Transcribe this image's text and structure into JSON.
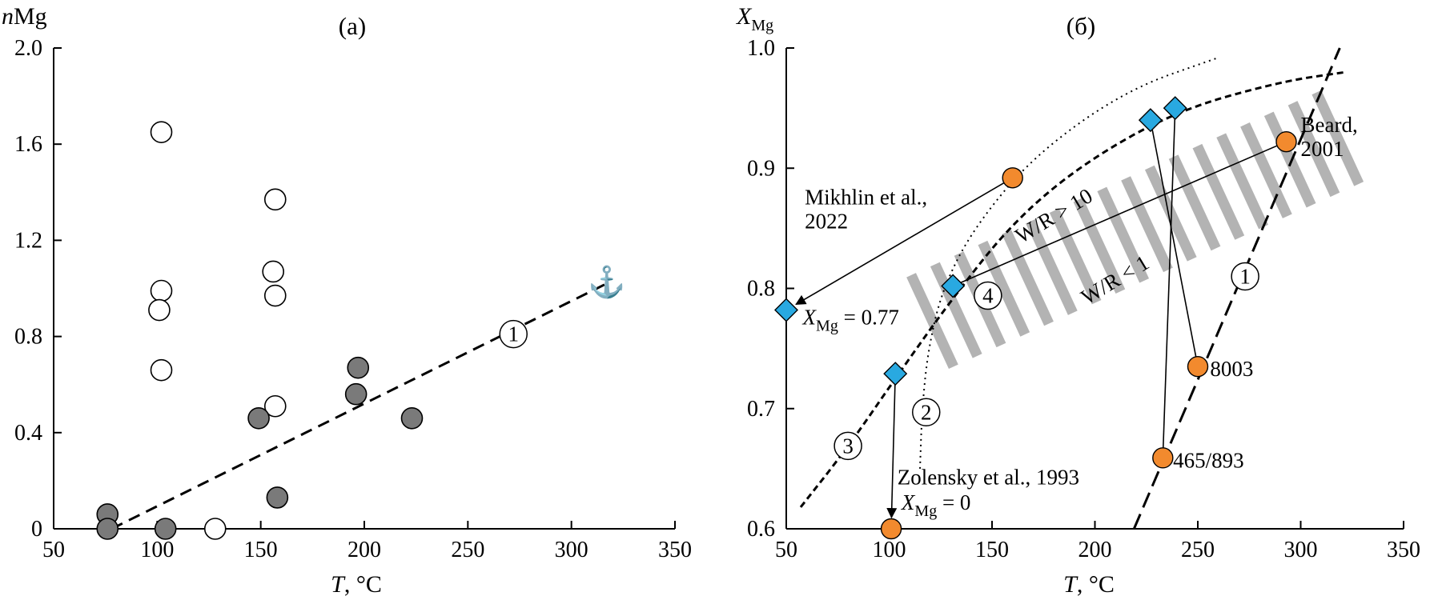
{
  "chart_data": [
    {
      "panel_label": "(a)",
      "type": "scatter",
      "ylabel_italic": "n",
      "ylabel": "Mg",
      "xlabel_italic": "T",
      "xlabel": ", °C",
      "xlim": [
        50,
        350
      ],
      "ylim": [
        0,
        2.0
      ],
      "x_ticks": [
        50,
        100,
        150,
        200,
        250,
        300,
        350
      ],
      "y_ticks": [
        0,
        0.4,
        0.8,
        1.2,
        1.6,
        2.0
      ],
      "y_tick_labels": [
        "0",
        "0.4",
        "0.8",
        "1.2",
        "1.6",
        "2.0"
      ],
      "series": [
        {
          "marker": "open-circle",
          "points": [
            [
              102,
              1.65
            ],
            [
              102,
              0.99
            ],
            [
              101,
              0.91
            ],
            [
              102,
              0.66
            ],
            [
              157,
              1.37
            ],
            [
              156,
              1.07
            ],
            [
              157,
              0.97
            ],
            [
              157,
              0.51
            ],
            [
              128,
              0.0
            ]
          ]
        },
        {
          "marker": "filled-circle",
          "color": "#7a7a7a",
          "points": [
            [
              76,
              0.06
            ],
            [
              76,
              0.0
            ],
            [
              104,
              0.0
            ],
            [
              149,
              0.46
            ],
            [
              158,
              0.13
            ],
            [
              197,
              0.67
            ],
            [
              196,
              0.56
            ],
            [
              223,
              0.46
            ]
          ]
        }
      ],
      "lines": [
        {
          "style": "dashed",
          "points": [
            [
              78,
              0.0
            ],
            [
              317,
              1.02
            ]
          ]
        }
      ],
      "annotations": [
        {
          "text": "1",
          "circled": true,
          "x": 272,
          "y": 0.81
        },
        {
          "text": "⚓",
          "x": 317,
          "y": 1.02
        }
      ]
    },
    {
      "panel_label": "(б)",
      "type": "scatter",
      "ylabel_italic": "X",
      "ylabel_sub": "Mg",
      "xlabel_italic": "T",
      "xlabel": ", °C",
      "xlim": [
        50,
        350
      ],
      "ylim": [
        0.6,
        1.0
      ],
      "x_ticks": [
        50,
        100,
        150,
        200,
        250,
        300,
        350
      ],
      "y_ticks": [
        0.6,
        0.7,
        0.8,
        0.9,
        1.0
      ],
      "y_tick_labels": [
        "0.6",
        "0.7",
        "0.8",
        "0.9",
        "1.0"
      ],
      "orange_color": "#f28a2e",
      "blue_color": "#29a9e1",
      "orange_points": [
        {
          "id": "mikhlin",
          "x": 160,
          "y": 0.892
        },
        {
          "id": "beard",
          "x": 293,
          "y": 0.922
        },
        {
          "id": "8003",
          "x": 250,
          "y": 0.735
        },
        {
          "id": "465",
          "x": 233,
          "y": 0.659
        },
        {
          "id": "zolensky",
          "x": 101,
          "y": 0.6
        }
      ],
      "blue_points": [
        {
          "id": "b50",
          "x": 50,
          "y": 0.782
        },
        {
          "id": "b103",
          "x": 103,
          "y": 0.729
        },
        {
          "id": "b131",
          "x": 131,
          "y": 0.802
        },
        {
          "id": "b227",
          "x": 227,
          "y": 0.94
        },
        {
          "id": "b239",
          "x": 239,
          "y": 0.95
        }
      ],
      "arrows": [
        {
          "from": [
            160,
            0.892
          ],
          "to": [
            50,
            0.782
          ]
        },
        {
          "from": [
            103,
            0.729
          ],
          "to": [
            101,
            0.6
          ]
        }
      ],
      "connectors": [
        {
          "from": [
            293,
            0.922
          ],
          "to": [
            131,
            0.802
          ]
        },
        {
          "from": [
            250,
            0.735
          ],
          "to": [
            227,
            0.94
          ]
        },
        {
          "from": [
            233,
            0.659
          ],
          "to": [
            239,
            0.95
          ]
        }
      ],
      "curves": [
        {
          "id": "1",
          "style": "longdash",
          "points": [
            [
              219,
              0.6
            ],
            [
              319,
              1.0
            ]
          ]
        },
        {
          "id": "2",
          "style": "dotted",
          "points": [
            [
              115,
              0.65
            ],
            [
              116,
              0.7
            ],
            [
              119,
              0.75
            ],
            [
              126,
              0.8
            ],
            [
              141,
              0.85
            ],
            [
              170,
              0.91
            ],
            [
              215,
              0.965
            ],
            [
              260,
              0.992
            ]
          ]
        },
        {
          "id": "3",
          "style": "dashed",
          "points": [
            [
              57,
              0.618
            ],
            [
              80,
              0.668
            ],
            [
              105,
              0.73
            ],
            [
              130,
              0.79
            ],
            [
              160,
              0.855
            ],
            [
              195,
              0.905
            ],
            [
              240,
              0.948
            ],
            [
              290,
              0.972
            ],
            [
              322,
              0.98
            ]
          ]
        }
      ],
      "hatched_band": {
        "x_range": [
          121,
          318
        ],
        "center_start": 0.773,
        "center_end": 0.925,
        "half_height": 0.027,
        "color": "#b3b3b3"
      },
      "labels": {
        "beard": "Beard,\n2001",
        "mikhlin": "Mikhlin et al.,\n2022",
        "zolensky": "Zolensky et al., 1993",
        "x_eq_077": "= 0.77",
        "x_eq_0": "= 0",
        "x_sym": "X",
        "x_sub": "Mg",
        "s8003": "8003",
        "s465": "465/893",
        "wr10": "W/R > 10",
        "wr1": "W/R < 1",
        "c1": "1",
        "c2": "2",
        "c3": "3",
        "c4": "4"
      }
    }
  ]
}
